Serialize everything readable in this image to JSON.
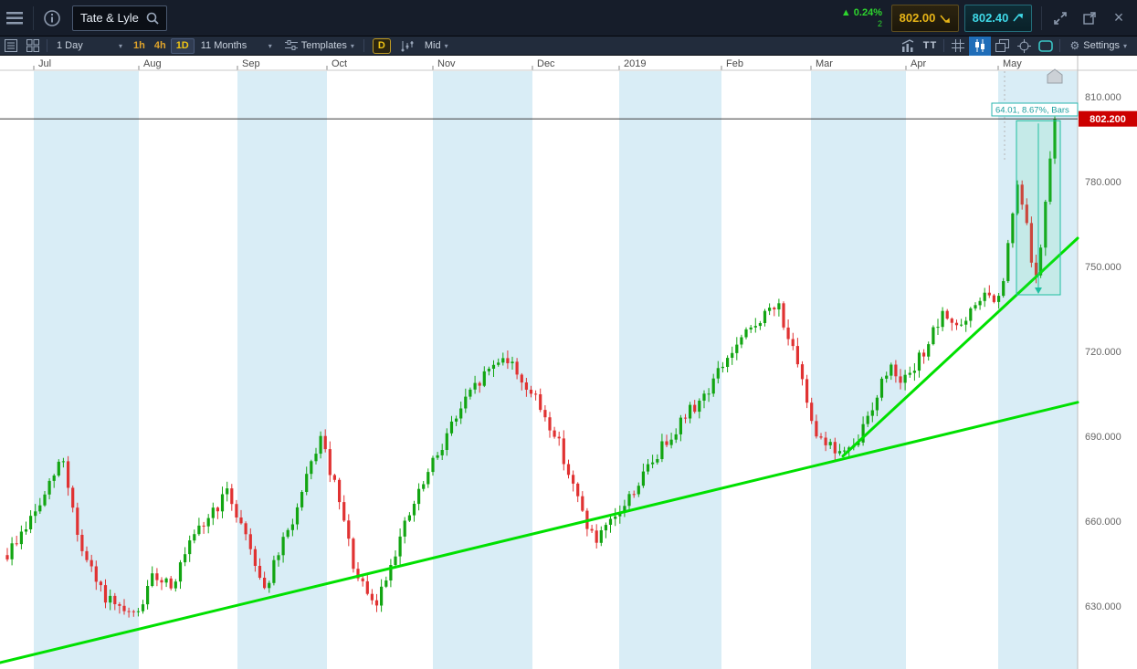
{
  "header": {
    "symbol": "Tate & Lyle",
    "change_pct": "0.24%",
    "change_sub": "2",
    "sell_price": "802.00",
    "buy_price": "802.40"
  },
  "toolbar": {
    "period": "1 Day",
    "tf_1h": "1h",
    "tf_4h": "4h",
    "tf_1d": "1D",
    "range": "11 Months",
    "templates": "Templates",
    "d_button": "D",
    "price_mode": "Mid",
    "text_tool": "TT",
    "settings": "Settings"
  },
  "colors": {
    "up": "#12a512",
    "down": "#e03232",
    "trend": "#00e000",
    "stripe": "#d9edf6",
    "price_tag": "#cc0000",
    "measure": "#1fbfa0",
    "change_green": "#2ed52e"
  },
  "chart_data": {
    "type": "candlestick",
    "instrument": "Tate & Lyle",
    "interval": "1 Day",
    "range": "11 Months",
    "months": [
      "Jul",
      "Aug",
      "Sep",
      "Oct",
      "Nov",
      "Dec",
      "2019",
      "Feb",
      "Mar",
      "Apr",
      "May"
    ],
    "y_ticks": [
      810,
      780,
      750,
      720,
      690,
      660,
      630
    ],
    "y_tick_labels": [
      "810.000",
      "780.000",
      "750.000",
      "720.000",
      "690.000",
      "660.000",
      "630.000"
    ],
    "current_price": 802.2,
    "current_price_label": "802.200",
    "measure_label": "64.01, 8.67%, Bars",
    "candle_count": 225,
    "anchors": [
      648,
      658,
      668,
      683,
      650,
      636,
      628,
      626,
      641,
      638,
      652,
      662,
      670,
      655,
      636,
      652,
      668,
      690,
      668,
      640,
      629,
      648,
      664,
      678,
      692,
      703,
      712,
      719,
      710,
      700,
      688,
      668,
      652,
      660,
      670,
      680,
      690,
      698,
      705,
      716,
      724,
      732,
      736,
      714,
      692,
      685,
      684,
      700,
      715,
      709,
      722,
      733,
      728,
      740,
      737,
      780,
      744,
      802
    ],
    "trend_lines": [
      {
        "x1_frac": 0.0,
        "price1": 610,
        "x2_frac": 1.0,
        "price2": 702
      },
      {
        "x1_frac": 0.782,
        "price1": 683,
        "x2_frac": 1.0,
        "price2": 760
      }
    ],
    "measure_box": {
      "x1_frac": 0.9432,
      "x2_frac": 0.9839,
      "price_top": 801.5,
      "price_bottom": 740
    }
  }
}
